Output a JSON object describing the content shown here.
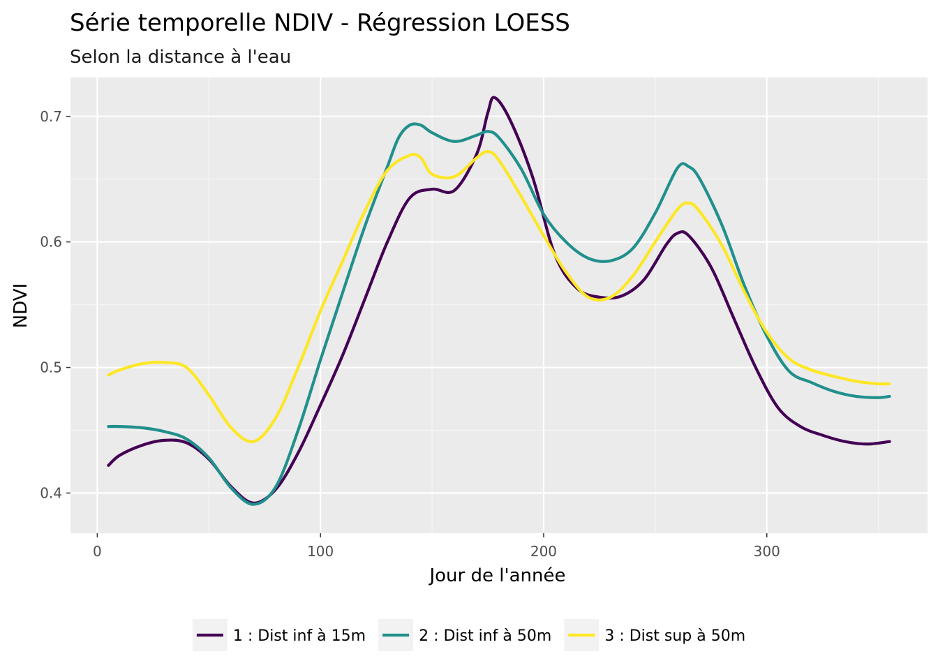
{
  "chart_data": {
    "type": "line",
    "title": "Série temporelle NDIV - Régression LOESS",
    "subtitle": "Selon la distance à l'eau",
    "xlabel": "Jour de l'année",
    "ylabel": "NDVI",
    "xlim": [
      -12,
      372
    ],
    "ylim": [
      0.368,
      0.731
    ],
    "x_ticks": [
      0,
      100,
      200,
      300
    ],
    "x_tick_labels": [
      "0",
      "100",
      "200",
      "300"
    ],
    "y_ticks": [
      0.4,
      0.5,
      0.6,
      0.7
    ],
    "y_tick_labels": [
      "0.4",
      "0.5",
      "0.6",
      "0.7"
    ],
    "grid": true,
    "legend_position": "bottom",
    "colors": {
      "panel": "#EBEBEB",
      "grid_major": "#FFFFFF",
      "grid_minor": "#F5F5F5",
      "tick": "#333333"
    },
    "series": [
      {
        "name": "1 : Dist inf à 15m",
        "color": "#440154",
        "x": [
          5,
          10,
          20,
          30,
          40,
          50,
          60,
          70,
          80,
          90,
          100,
          110,
          120,
          130,
          140,
          150,
          160,
          170,
          175,
          178,
          185,
          195,
          205,
          215,
          225,
          235,
          245,
          255,
          260,
          265,
          275,
          285,
          295,
          305,
          315,
          325,
          335,
          345,
          355
        ],
        "y": [
          0.422,
          0.43,
          0.438,
          0.442,
          0.44,
          0.427,
          0.405,
          0.392,
          0.403,
          0.432,
          0.47,
          0.51,
          0.555,
          0.6,
          0.635,
          0.642,
          0.641,
          0.67,
          0.703,
          0.715,
          0.697,
          0.652,
          0.59,
          0.563,
          0.556,
          0.557,
          0.57,
          0.598,
          0.607,
          0.605,
          0.58,
          0.54,
          0.5,
          0.468,
          0.453,
          0.446,
          0.441,
          0.439,
          0.441
        ]
      },
      {
        "name": "2 : Dist inf à 50m",
        "color": "#21908C",
        "x": [
          5,
          10,
          20,
          30,
          40,
          50,
          60,
          70,
          80,
          90,
          100,
          110,
          120,
          130,
          135,
          140,
          145,
          150,
          160,
          170,
          175,
          180,
          190,
          200,
          210,
          220,
          230,
          240,
          250,
          260,
          265,
          270,
          280,
          290,
          300,
          310,
          320,
          330,
          340,
          350,
          355
        ],
        "y": [
          0.453,
          0.453,
          0.452,
          0.449,
          0.443,
          0.428,
          0.404,
          0.391,
          0.405,
          0.45,
          0.506,
          0.56,
          0.613,
          0.66,
          0.683,
          0.693,
          0.693,
          0.687,
          0.68,
          0.685,
          0.688,
          0.683,
          0.658,
          0.622,
          0.6,
          0.587,
          0.585,
          0.595,
          0.623,
          0.659,
          0.66,
          0.65,
          0.613,
          0.565,
          0.525,
          0.497,
          0.488,
          0.481,
          0.477,
          0.476,
          0.477
        ]
      },
      {
        "name": "3 : Dist sup à 50m",
        "color": "#FDE725",
        "x": [
          5,
          10,
          20,
          30,
          40,
          50,
          60,
          70,
          80,
          90,
          100,
          110,
          120,
          130,
          140,
          145,
          150,
          160,
          170,
          175,
          180,
          190,
          200,
          210,
          220,
          230,
          240,
          250,
          260,
          265,
          270,
          280,
          290,
          300,
          310,
          320,
          330,
          340,
          350,
          355
        ],
        "y": [
          0.494,
          0.498,
          0.503,
          0.504,
          0.5,
          0.478,
          0.452,
          0.441,
          0.46,
          0.5,
          0.545,
          0.585,
          0.625,
          0.657,
          0.669,
          0.667,
          0.654,
          0.652,
          0.667,
          0.672,
          0.665,
          0.636,
          0.605,
          0.576,
          0.556,
          0.556,
          0.573,
          0.6,
          0.626,
          0.631,
          0.624,
          0.597,
          0.56,
          0.528,
          0.507,
          0.498,
          0.493,
          0.489,
          0.487,
          0.487
        ]
      }
    ]
  }
}
